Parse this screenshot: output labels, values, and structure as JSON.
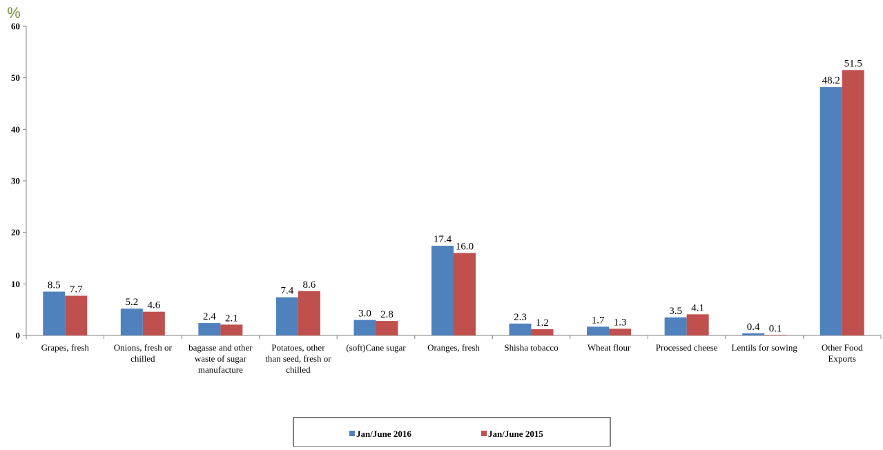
{
  "chart_data": {
    "type": "bar",
    "unit_label": "%",
    "ylim": [
      0,
      60
    ],
    "yticks": [
      0,
      10,
      20,
      30,
      40,
      50,
      60
    ],
    "grid": false,
    "legend_position": "bottom",
    "categories": [
      [
        "Grapes, fresh"
      ],
      [
        "Onions, fresh or",
        "chilled"
      ],
      [
        "bagasse and other",
        "waste of sugar",
        "manufacture"
      ],
      [
        "Potatoes, other",
        "than seed, fresh or",
        "chilled"
      ],
      [
        "(soft)Cane sugar"
      ],
      [
        "Oranges, fresh"
      ],
      [
        "Shisha tobacco"
      ],
      [
        "Wheat flour"
      ],
      [
        "Processed cheese"
      ],
      [
        "Lentils for sowing"
      ],
      [
        "Other Food",
        "Exports"
      ]
    ],
    "series": [
      {
        "name": "Jan/June 2016",
        "color": "#4F81BD",
        "values": [
          8.5,
          5.2,
          2.4,
          7.4,
          3.0,
          17.4,
          2.3,
          1.7,
          3.5,
          0.4,
          48.2
        ],
        "labels": [
          "8.5",
          "5.2",
          "2.4",
          "7.4",
          "3.0",
          "17.4",
          "2.3",
          "1.7",
          "3.5",
          "0.4",
          "48.2"
        ]
      },
      {
        "name": "Jan/June 2015",
        "color": "#C0504D",
        "values": [
          7.7,
          4.6,
          2.1,
          8.6,
          2.8,
          16.0,
          1.2,
          1.3,
          4.1,
          0.1,
          51.5
        ],
        "labels": [
          "7.7",
          "4.6",
          "2.1",
          "8.6",
          "2.8",
          "16.0",
          "1.2",
          "1.3",
          "4.1",
          "0.1",
          "51.5"
        ]
      }
    ],
    "colors": {
      "unit_label": "#76923C",
      "axis": "#808080",
      "text": "#000000"
    }
  }
}
